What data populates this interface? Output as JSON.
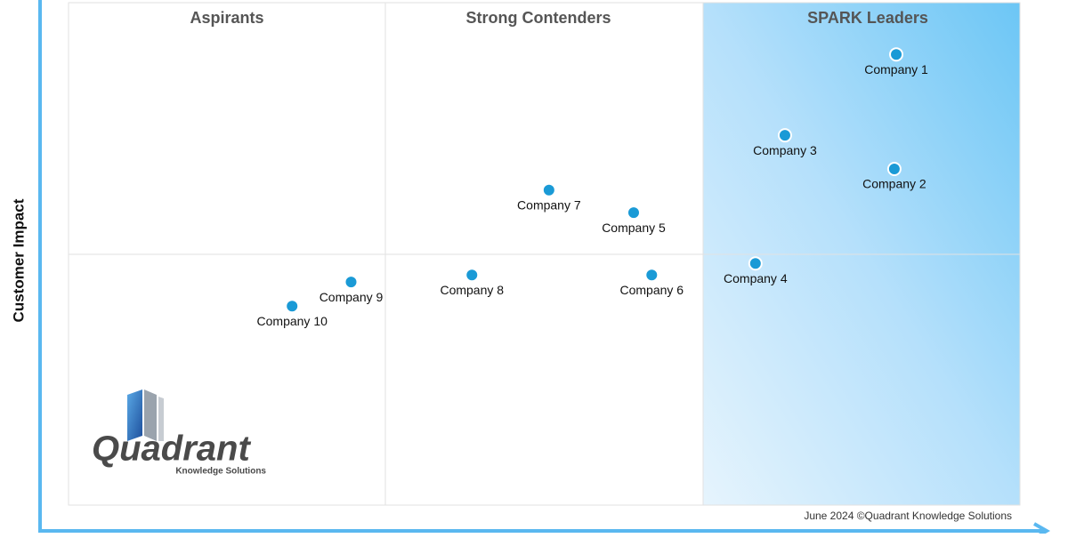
{
  "chart_data": {
    "type": "scatter",
    "y_label": "Customer Impact",
    "quadrants": [
      "Aspirants",
      "Strong Contenders",
      "SPARK Leaders"
    ],
    "point_labels": [
      "Company 1",
      "Company 2",
      "Company 3",
      "Company 4",
      "Company 5",
      "Company 6",
      "Company 7",
      "Company 8",
      "Company 9",
      "Company 10"
    ],
    "x": [
      87.0,
      86.8,
      75.3,
      72.2,
      59.4,
      61.3,
      50.5,
      42.4,
      29.7,
      23.5
    ],
    "values": [
      89.7,
      66.9,
      73.6,
      48.1,
      58.2,
      45.8,
      62.7,
      45.8,
      44.4,
      39.6
    ],
    "xlim": [
      0,
      100
    ],
    "ylim": [
      0,
      100
    ],
    "color": "#1a9ad6",
    "footnote": "June 2024 ©Quadrant Knowledge Solutions",
    "logo": {
      "title": "Quadrant",
      "subtitle": "Knowledge Solutions"
    }
  }
}
